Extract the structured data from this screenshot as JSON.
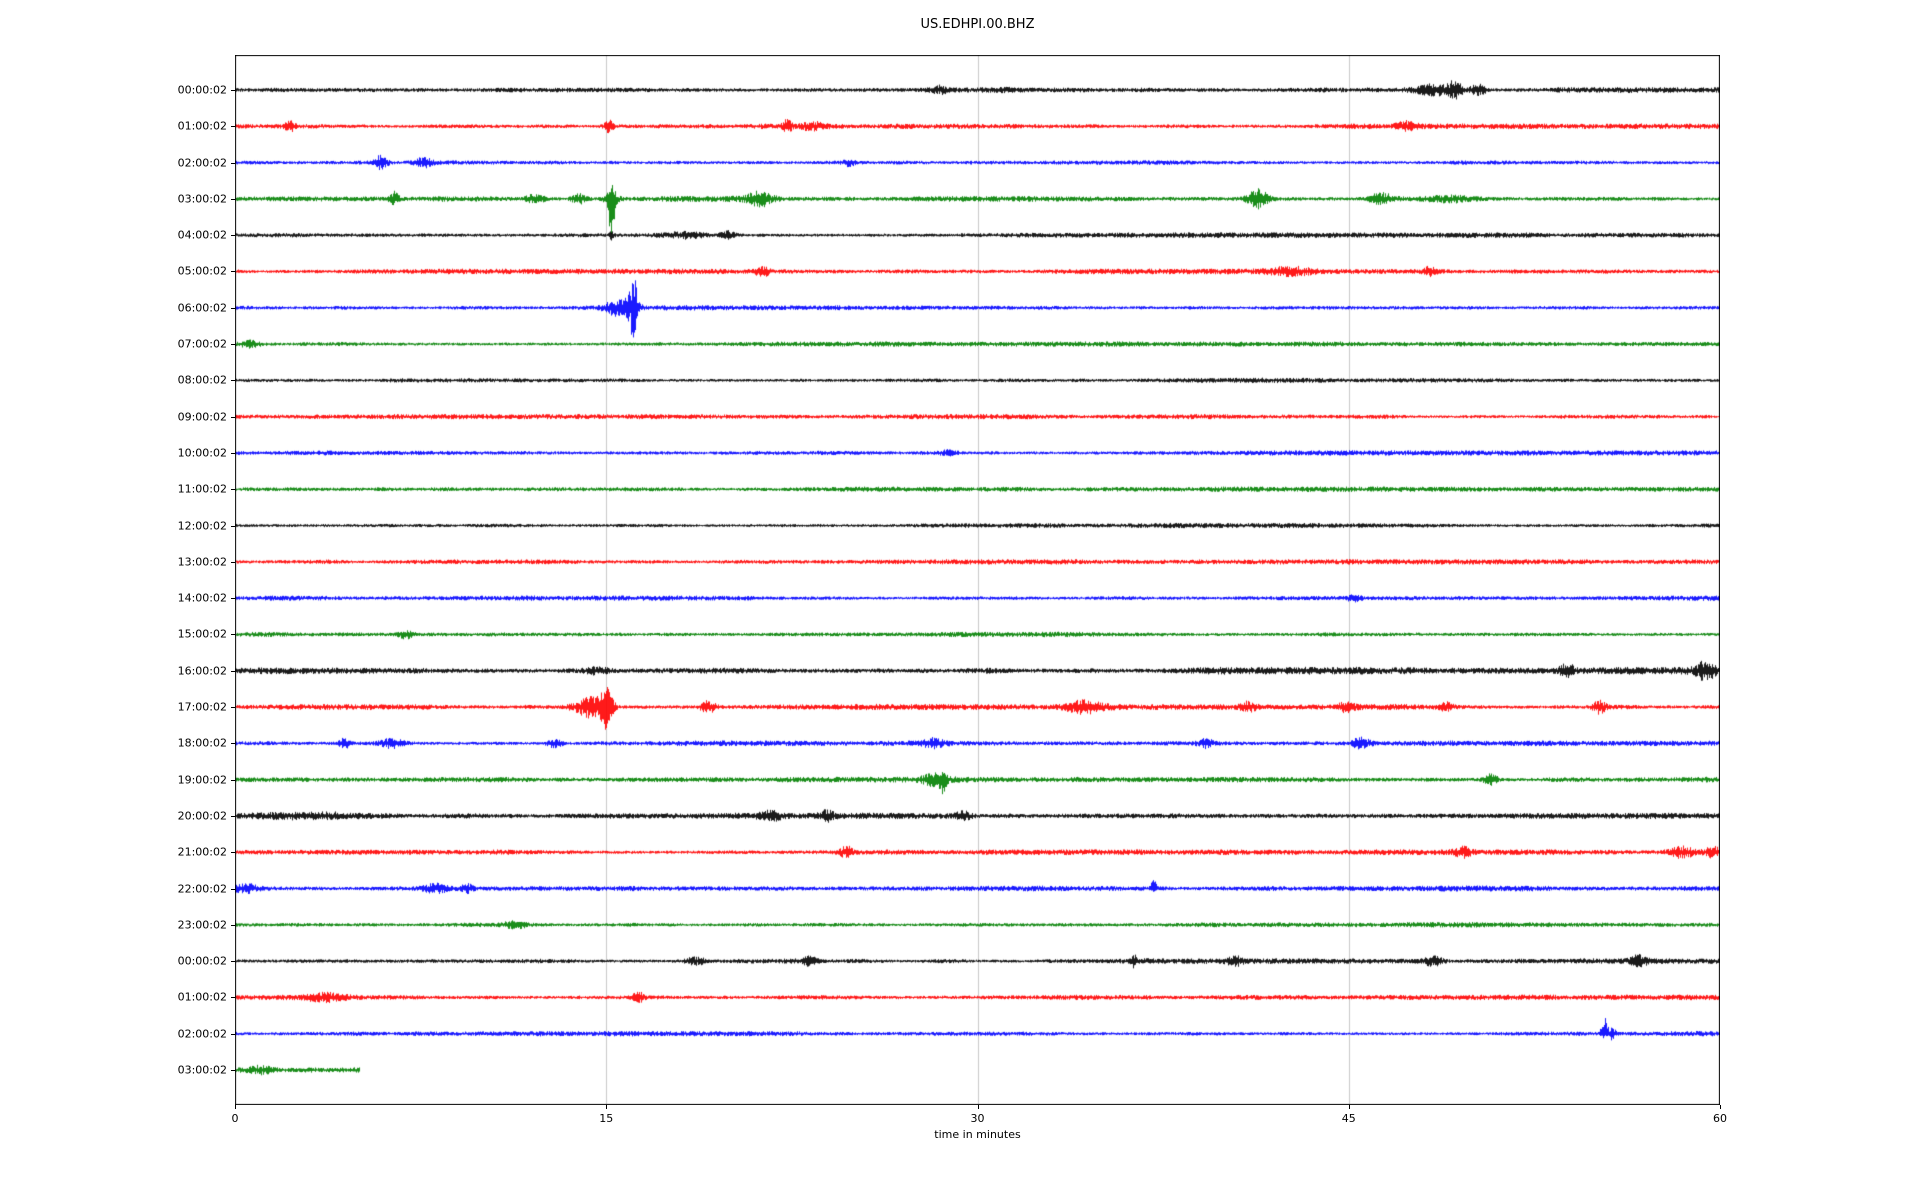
{
  "page": {
    "background": "#ffffff"
  },
  "chart_data": {
    "type": "line",
    "subtype": "helicorder-seismogram-dayplot",
    "title": "US.EDHPI.00.BHZ",
    "xlabel": "time in minutes",
    "x_range": [
      0,
      60
    ],
    "x_ticks": [
      0,
      15,
      30,
      45,
      60
    ],
    "grid_minutes": [
      15,
      30,
      45
    ],
    "grid_color": "#c8c8c8",
    "axis_color": "#000000",
    "trace_color_cycle": [
      "#000000",
      "#ff0000",
      "#0000ff",
      "#008000"
    ],
    "legend": "none",
    "rows": [
      {
        "label": "00:00:02",
        "color": "#000000",
        "duration_min": 60,
        "base_amp": 2.3,
        "events": [
          {
            "t": 28.5,
            "w": 0.3,
            "a": 3
          },
          {
            "t": 48.6,
            "w": 1.0,
            "a": 5
          },
          {
            "t": 49.3,
            "w": 0.25,
            "a": 7
          },
          {
            "t": 50.2,
            "w": 0.3,
            "a": 5
          }
        ]
      },
      {
        "label": "01:00:02",
        "color": "#ff0000",
        "duration_min": 60,
        "base_amp": 2.0,
        "events": [
          {
            "t": 2.2,
            "w": 0.2,
            "a": 5
          },
          {
            "t": 15.1,
            "w": 0.18,
            "a": 6
          },
          {
            "t": 22.3,
            "w": 0.18,
            "a": 7
          },
          {
            "t": 23.3,
            "w": 0.5,
            "a": 4
          },
          {
            "t": 47.3,
            "w": 0.4,
            "a": 4
          }
        ]
      },
      {
        "label": "02:00:02",
        "color": "#0000ff",
        "duration_min": 60,
        "base_amp": 2.0,
        "events": [
          {
            "t": 5.9,
            "w": 0.25,
            "a": 7
          },
          {
            "t": 7.6,
            "w": 0.4,
            "a": 4
          },
          {
            "t": 24.8,
            "w": 0.2,
            "a": 4
          }
        ]
      },
      {
        "label": "03:00:02",
        "color": "#008000",
        "duration_min": 60,
        "base_amp": 2.2,
        "events": [
          {
            "t": 6.4,
            "w": 0.2,
            "a": 6
          },
          {
            "t": 12.1,
            "w": 0.4,
            "a": 4
          },
          {
            "t": 13.9,
            "w": 0.3,
            "a": 5
          },
          {
            "t": 15.2,
            "w": 0.12,
            "a": 40,
            "dir": -1
          },
          {
            "t": 15.2,
            "w": 0.3,
            "a": 6
          },
          {
            "t": 21.2,
            "w": 0.5,
            "a": 7
          },
          {
            "t": 41.3,
            "w": 0.4,
            "a": 9
          },
          {
            "t": 46.3,
            "w": 0.5,
            "a": 5
          },
          {
            "t": 49.0,
            "w": 1.2,
            "a": 3
          }
        ]
      },
      {
        "label": "04:00:02",
        "color": "#000000",
        "duration_min": 60,
        "base_amp": 2.0,
        "events": [
          {
            "t": 15.2,
            "w": 0.1,
            "a": 4
          },
          {
            "t": 18.2,
            "w": 0.8,
            "a": 3
          },
          {
            "t": 19.9,
            "w": 0.3,
            "a": 4
          }
        ]
      },
      {
        "label": "05:00:02",
        "color": "#ff0000",
        "duration_min": 60,
        "base_amp": 2.0,
        "events": [
          {
            "t": 21.3,
            "w": 0.3,
            "a": 4
          },
          {
            "t": 42.6,
            "w": 0.9,
            "a": 3.5
          },
          {
            "t": 48.3,
            "w": 0.3,
            "a": 4
          }
        ]
      },
      {
        "label": "06:00:02",
        "color": "#0000ff",
        "duration_min": 60,
        "base_amp": 2.0,
        "events": [
          {
            "t": 15.4,
            "w": 0.5,
            "a": 7
          },
          {
            "t": 16.1,
            "w": 0.12,
            "a": 26
          },
          {
            "t": 16.0,
            "w": 0.3,
            "a": 10
          }
        ]
      },
      {
        "label": "07:00:02",
        "color": "#008000",
        "duration_min": 60,
        "base_amp": 1.9,
        "events": [
          {
            "t": 0.6,
            "w": 0.4,
            "a": 3
          }
        ]
      },
      {
        "label": "08:00:02",
        "color": "#000000",
        "duration_min": 60,
        "base_amp": 1.9,
        "events": []
      },
      {
        "label": "09:00:02",
        "color": "#ff0000",
        "duration_min": 60,
        "base_amp": 1.9,
        "events": []
      },
      {
        "label": "10:00:02",
        "color": "#0000ff",
        "duration_min": 60,
        "base_amp": 1.9,
        "events": [
          {
            "t": 28.8,
            "w": 0.3,
            "a": 2.5
          }
        ]
      },
      {
        "label": "11:00:02",
        "color": "#008000",
        "duration_min": 60,
        "base_amp": 1.9,
        "events": []
      },
      {
        "label": "12:00:02",
        "color": "#000000",
        "duration_min": 60,
        "base_amp": 1.9,
        "events": []
      },
      {
        "label": "13:00:02",
        "color": "#ff0000",
        "duration_min": 60,
        "base_amp": 1.9,
        "events": []
      },
      {
        "label": "14:00:02",
        "color": "#0000ff",
        "duration_min": 60,
        "base_amp": 1.9,
        "events": [
          {
            "t": 45.2,
            "w": 0.3,
            "a": 2.5
          }
        ]
      },
      {
        "label": "15:00:02",
        "color": "#008000",
        "duration_min": 60,
        "base_amp": 2.0,
        "events": [
          {
            "t": 6.9,
            "w": 0.3,
            "a": 3.5
          }
        ]
      },
      {
        "label": "16:00:02",
        "color": "#000000",
        "duration_min": 60,
        "base_amp": 2.8,
        "events": [
          {
            "t": 14.6,
            "w": 0.5,
            "a": 3
          },
          {
            "t": 53.8,
            "w": 0.3,
            "a": 6
          },
          {
            "t": 59.4,
            "w": 0.35,
            "a": 8
          }
        ]
      },
      {
        "label": "17:00:02",
        "color": "#ff0000",
        "duration_min": 60,
        "base_amp": 2.2,
        "events": [
          {
            "t": 14.3,
            "w": 0.6,
            "a": 10
          },
          {
            "t": 15.0,
            "w": 0.25,
            "a": 19
          },
          {
            "t": 19.1,
            "w": 0.3,
            "a": 6
          },
          {
            "t": 34.3,
            "w": 0.7,
            "a": 5
          },
          {
            "t": 40.9,
            "w": 0.3,
            "a": 4
          },
          {
            "t": 44.9,
            "w": 0.3,
            "a": 4
          },
          {
            "t": 48.9,
            "w": 0.3,
            "a": 4
          },
          {
            "t": 55.1,
            "w": 0.25,
            "a": 6
          }
        ]
      },
      {
        "label": "18:00:02",
        "color": "#0000ff",
        "duration_min": 60,
        "base_amp": 2.0,
        "events": [
          {
            "t": 4.4,
            "w": 0.2,
            "a": 6
          },
          {
            "t": 6.3,
            "w": 0.5,
            "a": 4
          },
          {
            "t": 12.9,
            "w": 0.3,
            "a": 4
          },
          {
            "t": 28.2,
            "w": 0.4,
            "a": 4
          },
          {
            "t": 39.2,
            "w": 0.3,
            "a": 3.5
          },
          {
            "t": 45.5,
            "w": 0.4,
            "a": 4.5
          }
        ]
      },
      {
        "label": "19:00:02",
        "color": "#008000",
        "duration_min": 60,
        "base_amp": 2.0,
        "events": [
          {
            "t": 28.3,
            "w": 0.5,
            "a": 6
          },
          {
            "t": 28.6,
            "w": 0.12,
            "a": 11,
            "dir": -1
          },
          {
            "t": 50.7,
            "w": 0.3,
            "a": 5
          }
        ]
      },
      {
        "label": "20:00:02",
        "color": "#000000",
        "duration_min": 60,
        "base_amp": 2.3,
        "events": [
          {
            "t": 3.0,
            "w": 3.0,
            "a": 1.5
          },
          {
            "t": 21.6,
            "w": 0.4,
            "a": 4
          },
          {
            "t": 23.9,
            "w": 0.3,
            "a": 4
          },
          {
            "t": 29.4,
            "w": 0.3,
            "a": 3.5
          }
        ]
      },
      {
        "label": "21:00:02",
        "color": "#ff0000",
        "duration_min": 60,
        "base_amp": 2.0,
        "events": [
          {
            "t": 24.7,
            "w": 0.25,
            "a": 5
          },
          {
            "t": 49.6,
            "w": 0.35,
            "a": 4
          },
          {
            "t": 58.4,
            "w": 0.5,
            "a": 5
          },
          {
            "t": 59.7,
            "w": 0.3,
            "a": 4
          }
        ]
      },
      {
        "label": "22:00:02",
        "color": "#0000ff",
        "duration_min": 60,
        "base_amp": 2.2,
        "events": [
          {
            "t": 0.4,
            "w": 0.5,
            "a": 4
          },
          {
            "t": 8.1,
            "w": 0.5,
            "a": 4
          },
          {
            "t": 9.4,
            "w": 0.3,
            "a": 4
          },
          {
            "t": 37.1,
            "w": 0.12,
            "a": 11,
            "dir": 1
          }
        ]
      },
      {
        "label": "23:00:02",
        "color": "#008000",
        "duration_min": 60,
        "base_amp": 2.0,
        "events": [
          {
            "t": 11.3,
            "w": 0.5,
            "a": 3
          }
        ]
      },
      {
        "label": "00:00:02",
        "color": "#000000",
        "duration_min": 60,
        "base_amp": 2.0,
        "events": [
          {
            "t": 18.6,
            "w": 0.4,
            "a": 3.5
          },
          {
            "t": 23.2,
            "w": 0.3,
            "a": 4
          },
          {
            "t": 36.3,
            "w": 0.12,
            "a": 5
          },
          {
            "t": 40.4,
            "w": 0.3,
            "a": 3.5
          },
          {
            "t": 48.4,
            "w": 0.4,
            "a": 4
          },
          {
            "t": 56.7,
            "w": 0.3,
            "a": 5
          }
        ]
      },
      {
        "label": "01:00:02",
        "color": "#ff0000",
        "duration_min": 60,
        "base_amp": 2.0,
        "events": [
          {
            "t": 3.6,
            "w": 0.8,
            "a": 3
          },
          {
            "t": 16.3,
            "w": 0.25,
            "a": 5
          }
        ]
      },
      {
        "label": "02:00:02",
        "color": "#0000ff",
        "duration_min": 60,
        "base_amp": 1.9,
        "events": [
          {
            "t": 55.3,
            "w": 0.12,
            "a": 16,
            "dir": 1
          },
          {
            "t": 55.6,
            "w": 0.2,
            "a": 5
          }
        ]
      },
      {
        "label": "03:00:02",
        "color": "#008000",
        "duration_min": 5,
        "base_amp": 2.3,
        "events": [
          {
            "t": 1.0,
            "w": 0.6,
            "a": 3
          }
        ]
      }
    ]
  }
}
